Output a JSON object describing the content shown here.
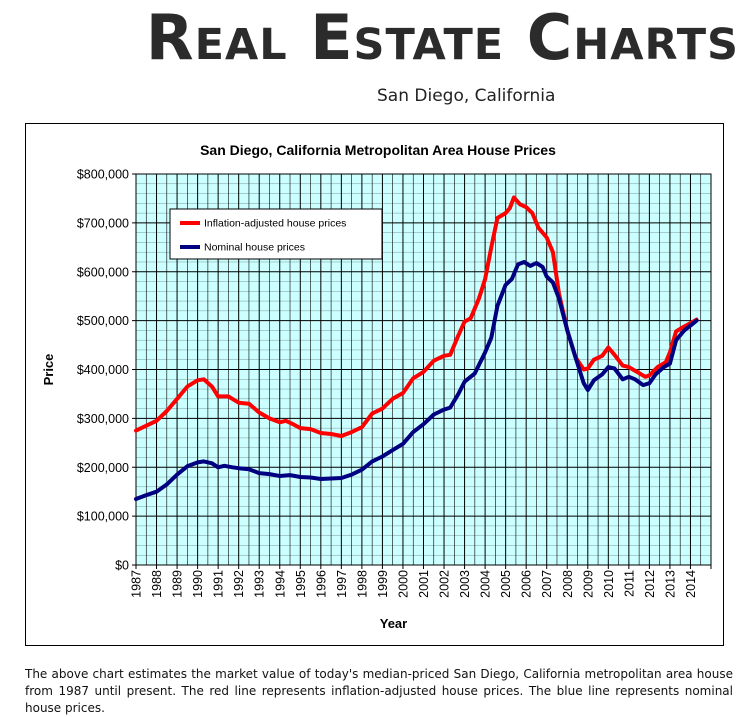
{
  "header": {
    "site_title": "Real Estate Charts",
    "subtitle": "San Diego, California"
  },
  "caption": "The above chart estimates the market value of today's median-priced San Diego, California metropolitan area house from 1987 until present. The red line represents inflation-adjusted house prices. The blue line represents nominal house prices.",
  "colors": {
    "plot_background": "#ccffff",
    "gridlines": "#000000",
    "inflation_line": "#ff0000",
    "nominal_line": "#000080"
  },
  "chart_data": {
    "type": "line",
    "title": "San Diego, California Metropolitan Area House Prices",
    "xlabel": "Year",
    "ylabel": "Price",
    "ylim": [
      0,
      800000
    ],
    "xlim": [
      1987,
      2015
    ],
    "y_ticks": [
      0,
      100000,
      200000,
      300000,
      400000,
      500000,
      600000,
      700000,
      800000
    ],
    "y_tick_labels": [
      "$0",
      "$100,000",
      "$200,000",
      "$300,000",
      "$400,000",
      "$500,000",
      "$600,000",
      "$700,000",
      "$800,000"
    ],
    "x_tick_labels": [
      "1987",
      "1988",
      "1989",
      "1990",
      "1991",
      "1992",
      "1993",
      "1994",
      "1995",
      "1996",
      "1997",
      "1998",
      "1999",
      "2000",
      "2001",
      "2002",
      "2003",
      "2004",
      "2005",
      "2006",
      "2007",
      "2008",
      "2009",
      "2010",
      "2011",
      "2012",
      "2013",
      "2014"
    ],
    "grid": true,
    "legend_position": "top-left",
    "series": [
      {
        "name": "Inflation-adjusted house prices",
        "color": "#ff0000",
        "points": [
          [
            1987.0,
            275000
          ],
          [
            1987.5,
            285000
          ],
          [
            1988.0,
            295000
          ],
          [
            1988.5,
            315000
          ],
          [
            1989.0,
            340000
          ],
          [
            1989.5,
            365000
          ],
          [
            1990.0,
            378000
          ],
          [
            1990.3,
            380000
          ],
          [
            1990.7,
            365000
          ],
          [
            1991.0,
            345000
          ],
          [
            1991.5,
            345000
          ],
          [
            1992.0,
            332000
          ],
          [
            1992.5,
            330000
          ],
          [
            1993.0,
            312000
          ],
          [
            1993.5,
            300000
          ],
          [
            1994.0,
            292000
          ],
          [
            1994.3,
            295000
          ],
          [
            1994.7,
            287000
          ],
          [
            1995.0,
            280000
          ],
          [
            1995.5,
            278000
          ],
          [
            1996.0,
            270000
          ],
          [
            1996.5,
            268000
          ],
          [
            1997.0,
            264000
          ],
          [
            1997.5,
            272000
          ],
          [
            1998.0,
            282000
          ],
          [
            1998.5,
            310000
          ],
          [
            1999.0,
            320000
          ],
          [
            1999.5,
            340000
          ],
          [
            2000.0,
            352000
          ],
          [
            2000.5,
            382000
          ],
          [
            2001.0,
            395000
          ],
          [
            2001.5,
            418000
          ],
          [
            2002.0,
            428000
          ],
          [
            2002.3,
            430000
          ],
          [
            2002.7,
            470000
          ],
          [
            2003.0,
            498000
          ],
          [
            2003.3,
            505000
          ],
          [
            2003.7,
            545000
          ],
          [
            2004.0,
            585000
          ],
          [
            2004.3,
            650000
          ],
          [
            2004.6,
            710000
          ],
          [
            2005.0,
            720000
          ],
          [
            2005.2,
            730000
          ],
          [
            2005.4,
            752000
          ],
          [
            2005.7,
            738000
          ],
          [
            2006.0,
            732000
          ],
          [
            2006.3,
            720000
          ],
          [
            2006.6,
            690000
          ],
          [
            2007.0,
            670000
          ],
          [
            2007.3,
            640000
          ],
          [
            2007.6,
            555000
          ],
          [
            2008.0,
            480000
          ],
          [
            2008.4,
            425000
          ],
          [
            2008.8,
            400000
          ],
          [
            2009.0,
            402000
          ],
          [
            2009.3,
            420000
          ],
          [
            2009.7,
            428000
          ],
          [
            2010.0,
            445000
          ],
          [
            2010.3,
            430000
          ],
          [
            2010.7,
            408000
          ],
          [
            2011.0,
            405000
          ],
          [
            2011.4,
            395000
          ],
          [
            2011.8,
            385000
          ],
          [
            2012.0,
            388000
          ],
          [
            2012.4,
            405000
          ],
          [
            2012.8,
            415000
          ],
          [
            2013.0,
            435000
          ],
          [
            2013.3,
            478000
          ],
          [
            2013.7,
            488000
          ],
          [
            2014.0,
            495000
          ],
          [
            2014.3,
            502000
          ]
        ]
      },
      {
        "name": "Nominal house prices",
        "color": "#000080",
        "points": [
          [
            1987.0,
            135000
          ],
          [
            1987.5,
            143000
          ],
          [
            1988.0,
            150000
          ],
          [
            1988.5,
            165000
          ],
          [
            1989.0,
            185000
          ],
          [
            1989.5,
            202000
          ],
          [
            1990.0,
            210000
          ],
          [
            1990.3,
            212000
          ],
          [
            1990.7,
            208000
          ],
          [
            1991.0,
            200000
          ],
          [
            1991.3,
            203000
          ],
          [
            1991.7,
            200000
          ],
          [
            1992.0,
            198000
          ],
          [
            1992.5,
            196000
          ],
          [
            1993.0,
            188000
          ],
          [
            1993.5,
            186000
          ],
          [
            1994.0,
            182000
          ],
          [
            1994.5,
            184000
          ],
          [
            1995.0,
            180000
          ],
          [
            1995.5,
            179000
          ],
          [
            1996.0,
            176000
          ],
          [
            1996.5,
            177000
          ],
          [
            1997.0,
            178000
          ],
          [
            1997.5,
            185000
          ],
          [
            1998.0,
            195000
          ],
          [
            1998.5,
            212000
          ],
          [
            1999.0,
            222000
          ],
          [
            1999.5,
            235000
          ],
          [
            2000.0,
            248000
          ],
          [
            2000.5,
            272000
          ],
          [
            2001.0,
            288000
          ],
          [
            2001.5,
            308000
          ],
          [
            2002.0,
            318000
          ],
          [
            2002.3,
            322000
          ],
          [
            2002.7,
            350000
          ],
          [
            2003.0,
            375000
          ],
          [
            2003.5,
            392000
          ],
          [
            2004.0,
            435000
          ],
          [
            2004.3,
            465000
          ],
          [
            2004.6,
            530000
          ],
          [
            2005.0,
            573000
          ],
          [
            2005.3,
            585000
          ],
          [
            2005.6,
            615000
          ],
          [
            2005.9,
            620000
          ],
          [
            2006.2,
            612000
          ],
          [
            2006.5,
            618000
          ],
          [
            2006.8,
            610000
          ],
          [
            2007.0,
            590000
          ],
          [
            2007.3,
            578000
          ],
          [
            2007.6,
            545000
          ],
          [
            2008.0,
            480000
          ],
          [
            2008.4,
            425000
          ],
          [
            2008.8,
            372000
          ],
          [
            2009.0,
            358000
          ],
          [
            2009.3,
            378000
          ],
          [
            2009.7,
            390000
          ],
          [
            2010.0,
            405000
          ],
          [
            2010.3,
            402000
          ],
          [
            2010.7,
            380000
          ],
          [
            2011.0,
            385000
          ],
          [
            2011.3,
            380000
          ],
          [
            2011.7,
            368000
          ],
          [
            2012.0,
            372000
          ],
          [
            2012.3,
            390000
          ],
          [
            2012.7,
            405000
          ],
          [
            2013.0,
            412000
          ],
          [
            2013.3,
            460000
          ],
          [
            2013.7,
            480000
          ],
          [
            2014.0,
            490000
          ],
          [
            2014.3,
            500000
          ]
        ]
      }
    ]
  }
}
